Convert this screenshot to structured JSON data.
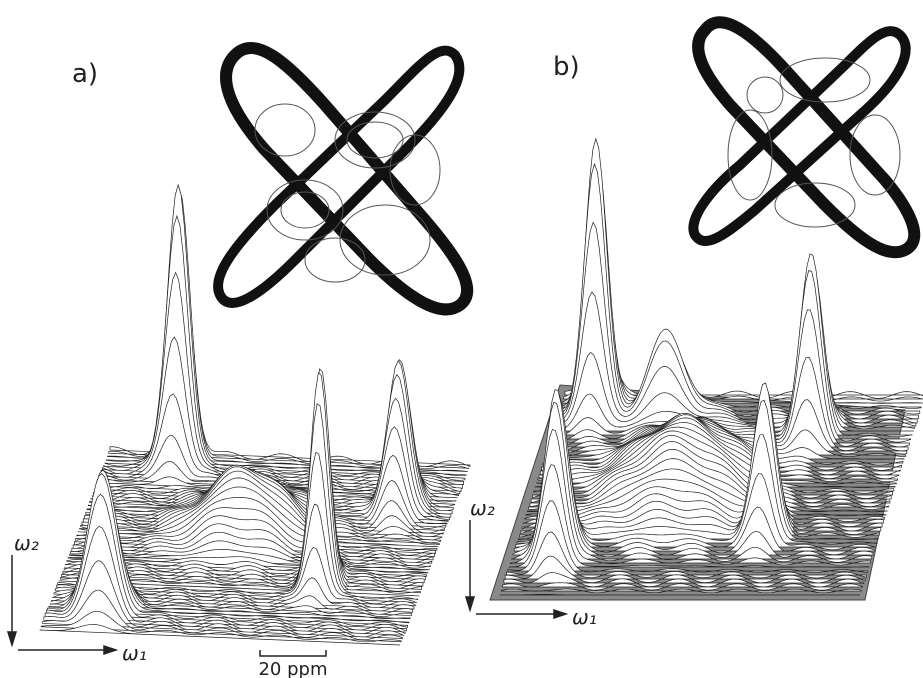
{
  "panels": [
    {
      "label": "a)",
      "axes": {
        "x": "ω₁",
        "y": "ω₂"
      }
    },
    {
      "label": "b)",
      "axes": {
        "x": "ω₁",
        "y": "ω₂"
      }
    }
  ],
  "scale_bar": {
    "label": "20 ppm"
  }
}
